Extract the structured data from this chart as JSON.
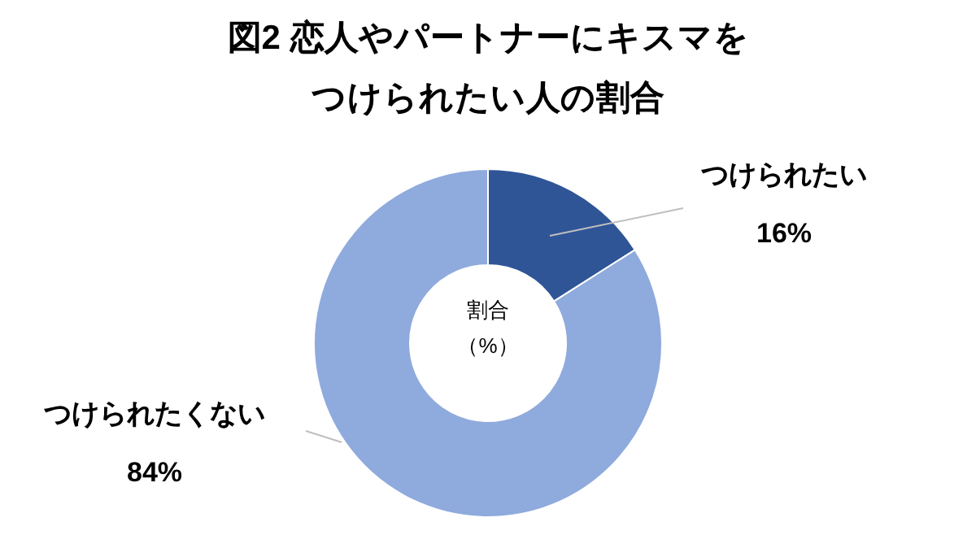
{
  "chart_data": {
    "type": "donut",
    "title": "図2 恋人やパートナーにキスマを",
    "subtitle": "つけられたい人の割合",
    "categories": [
      "つけられたい",
      "つけられたくない"
    ],
    "values": [
      16,
      84
    ],
    "value_labels": [
      "16%",
      "84%"
    ],
    "colors": [
      "#2f5597",
      "#8faadc"
    ],
    "annotations": [
      "割合",
      "（%）"
    ]
  }
}
